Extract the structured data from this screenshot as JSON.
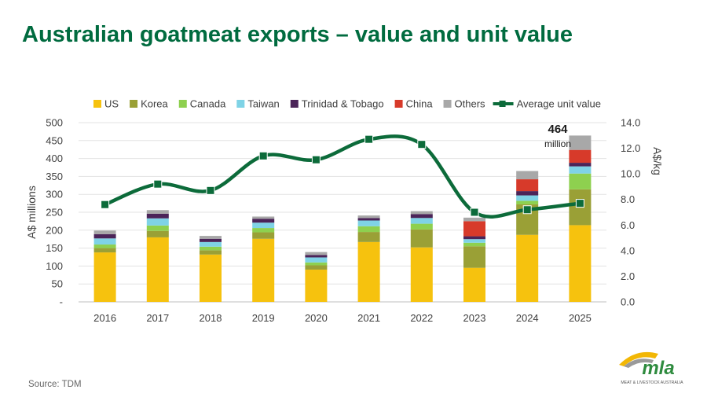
{
  "page": {
    "title": "Australian goatmeat exports – value and unit value",
    "source": "Source: TDM"
  },
  "logo": {
    "text": "mla",
    "subtext": "MEAT & LIVESTOCK AUSTRALIA",
    "colors": {
      "green": "#2e8b3e",
      "gold": "#f2b705",
      "grey": "#9a9a9a"
    }
  },
  "chart_data": {
    "type": "bar",
    "stacked": true,
    "categories": [
      "2016",
      "2017",
      "2018",
      "2019",
      "2020",
      "2021",
      "2022",
      "2023",
      "2024",
      "2025"
    ],
    "series": [
      {
        "name": "US",
        "color": "#f6c20e",
        "values": [
          138,
          180,
          132,
          176,
          90,
          167,
          152,
          95,
          187,
          214
        ]
      },
      {
        "name": "Korea",
        "color": "#9aa036",
        "values": [
          12,
          18,
          12,
          18,
          12,
          28,
          50,
          60,
          85,
          100
        ]
      },
      {
        "name": "Canada",
        "color": "#8ed04f",
        "values": [
          10,
          15,
          10,
          12,
          8,
          16,
          16,
          10,
          10,
          44
        ]
      },
      {
        "name": "Taiwan",
        "color": "#7fd3e6",
        "values": [
          17,
          20,
          13,
          15,
          14,
          16,
          16,
          10,
          15,
          20
        ]
      },
      {
        "name": "Trinidad & Tobago",
        "color": "#4b2458",
        "values": [
          12,
          13,
          9,
          11,
          7,
          7,
          11,
          8,
          12,
          10
        ]
      },
      {
        "name": "China",
        "color": "#d73a2a",
        "values": [
          0,
          0,
          0,
          0,
          0,
          0,
          0,
          42,
          33,
          36
        ]
      },
      {
        "name": "Others",
        "color": "#a8a8a8",
        "values": [
          10,
          10,
          8,
          6,
          8,
          7,
          8,
          10,
          23,
          40
        ]
      }
    ],
    "line": {
      "name": "Average unit value",
      "color": "#0c6b3a",
      "values": [
        7.6,
        9.2,
        8.7,
        11.4,
        11.1,
        12.7,
        12.3,
        7.0,
        7.2,
        7.7
      ]
    },
    "ylabel": "A$ millions",
    "y2label": "A$/kg",
    "ylim": [
      0,
      500
    ],
    "y_ticks": [
      "-",
      "50",
      "100",
      "150",
      "200",
      "250",
      "300",
      "350",
      "400",
      "450",
      "500"
    ],
    "y2lim": [
      0,
      14
    ],
    "y2_ticks": [
      "0.0",
      "2.0",
      "4.0",
      "6.0",
      "8.0",
      "10.0",
      "12.0",
      "14.0"
    ],
    "grid": true,
    "legend": "top",
    "annotation": {
      "category": "2025",
      "value": "464",
      "unit": "million"
    }
  }
}
